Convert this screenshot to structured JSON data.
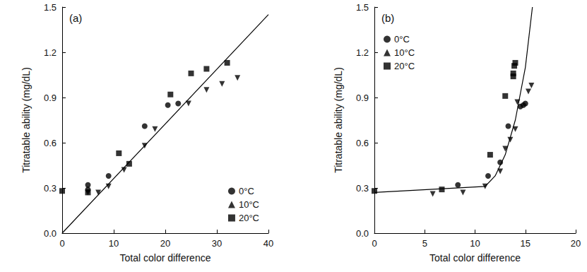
{
  "chart_data": [
    {
      "type": "scatter",
      "label": "(a)",
      "x_label": "Total color difference",
      "y_label": "Titratable ability (mg/dL)",
      "xlim": [
        0,
        40
      ],
      "xticks": [
        0,
        10,
        20,
        30,
        40
      ],
      "ylim": [
        0,
        1.5
      ],
      "yticks": [
        {
          "value": 0,
          "label": "0.0"
        },
        0.3,
        0.6,
        0.9,
        1.2,
        1.5
      ],
      "grid": false,
      "legend": "lower right",
      "series": [
        {
          "name": "0°C",
          "color": "#000000",
          "marker": "circle",
          "x": [
            5,
            5,
            9,
            16,
            20.5,
            22.5
          ],
          "values": [
            0.32,
            0.29,
            0.38,
            0.71,
            0.85,
            0.86
          ]
        },
        {
          "name": "10°C",
          "color": "#000000",
          "marker": "triangle_down",
          "x": [
            5,
            7,
            9,
            12,
            16,
            18,
            24.5,
            28,
            31,
            34
          ],
          "values": [
            0.27,
            0.27,
            0.31,
            0.42,
            0.58,
            0.69,
            0.86,
            0.95,
            0.99,
            1.03
          ]
        },
        {
          "name": "20°C",
          "color": "#000000",
          "marker": "square",
          "x": [
            0,
            5,
            11,
            13,
            21,
            25,
            28,
            32
          ],
          "values": [
            0.28,
            0.27,
            0.53,
            0.46,
            0.92,
            1.06,
            1.09,
            1.13
          ]
        },
        {
          "type": "line",
          "color": "#000000",
          "line_style": "solid",
          "x": [
            0,
            40
          ],
          "values": [
            0,
            1.45
          ]
        }
      ]
    },
    {
      "type": "scatter",
      "label": "(b)",
      "x_label": "Total color difference",
      "y_label": "Titratable ability (mg/dL)",
      "xlim": [
        0,
        20
      ],
      "xticks": [
        0,
        5,
        10,
        15,
        20
      ],
      "ylim": [
        0,
        1.5
      ],
      "yticks": [
        {
          "value": 0,
          "label": "0.0"
        },
        0.3,
        0.6,
        0.9,
        1.2,
        1.5
      ],
      "grid": false,
      "legend": "upper left",
      "series": [
        {
          "name": "0°C",
          "color": "#000000",
          "marker": "circle",
          "x": [
            8.3,
            11.3,
            12.5,
            13.3,
            14.5,
            14.8,
            15
          ],
          "values": [
            0.32,
            0.38,
            0.47,
            0.71,
            0.84,
            0.85,
            0.86
          ]
        },
        {
          "name": "10°C",
          "color": "#000000",
          "marker": "triangle_down",
          "x": [
            5.8,
            8.8,
            11,
            12.5,
            13,
            13.5,
            14,
            14.2,
            15.3,
            15.6
          ],
          "values": [
            0.26,
            0.27,
            0.31,
            0.41,
            0.56,
            0.62,
            0.69,
            0.87,
            0.94,
            0.98
          ]
        },
        {
          "name": "20°C",
          "color": "#000000",
          "marker": "square",
          "x": [
            0,
            6.7,
            11.5,
            13,
            13.8,
            13.9,
            14,
            13.8
          ],
          "values": [
            0.28,
            0.29,
            0.52,
            0.91,
            1.06,
            1.11,
            1.13,
            1.04
          ]
        },
        {
          "type": "line",
          "color": "#000000",
          "line_style": "solid",
          "x": [
            0,
            11,
            12,
            13,
            14,
            15,
            15.7
          ],
          "values": [
            0.27,
            0.31,
            0.38,
            0.52,
            0.75,
            1.1,
            1.5
          ]
        }
      ]
    }
  ]
}
